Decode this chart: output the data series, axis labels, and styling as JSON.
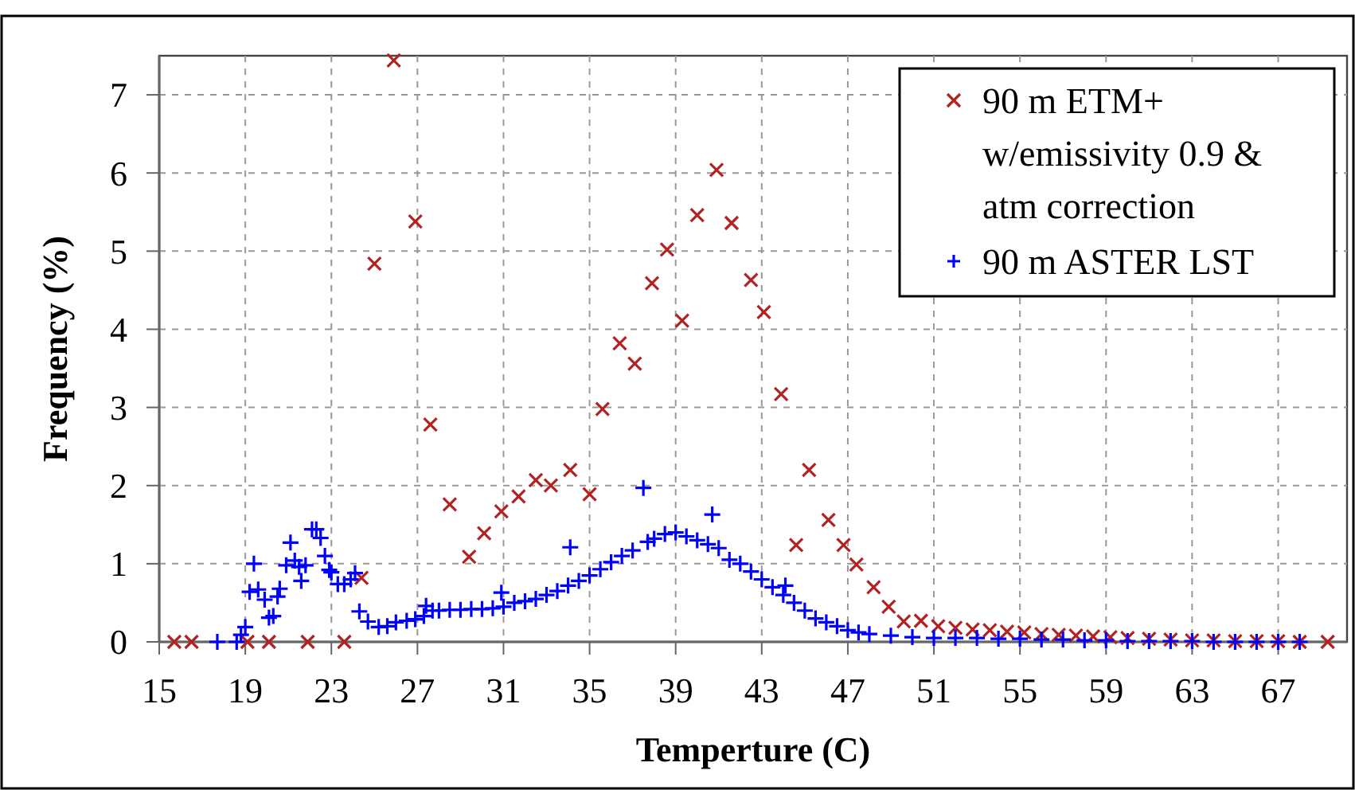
{
  "chart_data": {
    "type": "scatter",
    "xlabel": "Temperture (C)",
    "ylabel": "Frequency (%)",
    "xlim": [
      15,
      70.2
    ],
    "xticks": [
      15,
      19,
      23,
      27,
      31,
      35,
      39,
      43,
      47,
      51,
      55,
      59,
      63,
      67
    ],
    "ylim": [
      0,
      7.5
    ],
    "yticks": [
      0,
      1,
      2,
      3,
      4,
      5,
      6,
      7
    ],
    "grid": true,
    "legend": "top right",
    "series": [
      {
        "name": "90 m ETM+ w/emissivity 0.9 & atm correction",
        "color": "#b22222",
        "marker": "cross",
        "x": [
          15.7,
          16.5,
          19.1,
          20.1,
          21.9,
          23.6,
          24.4,
          25.0,
          25.9,
          26.9,
          27.6,
          28.5,
          29.4,
          30.1,
          30.9,
          31.7,
          32.5,
          33.2,
          34.1,
          35.0,
          35.6,
          36.4,
          37.1,
          37.9,
          38.6,
          39.3,
          40.0,
          40.9,
          41.6,
          42.5,
          43.1,
          43.9,
          44.6,
          45.2,
          46.1,
          46.8,
          47.4,
          48.2,
          48.9,
          49.6,
          50.4,
          51.2,
          52.0,
          52.8,
          53.6,
          54.4,
          55.2,
          56.0,
          56.8,
          57.6,
          58.4,
          59.2,
          60.0,
          61.0,
          62.0,
          63.0,
          64.0,
          65.0,
          66.0,
          67.0,
          68.0,
          69.3
        ],
        "values": [
          0,
          0,
          0,
          0,
          0,
          0,
          0.82,
          4.84,
          7.44,
          5.38,
          2.78,
          1.76,
          1.09,
          1.39,
          1.67,
          1.86,
          2.07,
          2.0,
          2.2,
          1.89,
          2.98,
          3.82,
          3.56,
          4.59,
          5.02,
          4.11,
          5.46,
          6.04,
          5.36,
          4.63,
          4.22,
          3.17,
          1.24,
          2.2,
          1.56,
          1.24,
          0.99,
          0.7,
          0.45,
          0.26,
          0.27,
          0.2,
          0.18,
          0.16,
          0.15,
          0.13,
          0.12,
          0.1,
          0.09,
          0.08,
          0.07,
          0.06,
          0.05,
          0.04,
          0.03,
          0.02,
          0.02,
          0.01,
          0.01,
          0.01,
          0,
          0
        ]
      },
      {
        "name": "90 m ASTER LST",
        "color": "#0000ff",
        "marker": "plus",
        "x": [
          17.7,
          18.6,
          18.8,
          19.0,
          19.2,
          19.4,
          19.6,
          19.9,
          20.1,
          20.3,
          20.5,
          20.6,
          20.9,
          21.1,
          21.3,
          21.5,
          21.6,
          21.8,
          22.1,
          22.3,
          22.5,
          22.7,
          22.9,
          23.0,
          23.3,
          23.6,
          23.9,
          24.1,
          24.3,
          24.7,
          25.2,
          25.6,
          26.0,
          26.5,
          26.9,
          27.3,
          27.4,
          27.7,
          28.0,
          28.5,
          29.0,
          29.5,
          30.0,
          30.5,
          30.9,
          31.0,
          31.5,
          32.0,
          32.5,
          33.0,
          33.5,
          34.0,
          34.1,
          34.5,
          35.0,
          35.5,
          36.0,
          36.5,
          37.0,
          37.5,
          37.7,
          38.0,
          38.5,
          39.0,
          39.5,
          40.0,
          40.5,
          40.7,
          41.0,
          41.5,
          42.0,
          42.5,
          43.0,
          43.5,
          44.0,
          44.1,
          44.5,
          45.0,
          45.5,
          46.0,
          46.5,
          47.0,
          47.5,
          48.0,
          49.0,
          50.0,
          51.0,
          52.0,
          53.0,
          54.0,
          55.0,
          56.0,
          57.0,
          58.0,
          59.0,
          60.0,
          61.0,
          62.0,
          63.0,
          64.0,
          65.0,
          66.0,
          67.0,
          68.0
        ],
        "values": [
          0,
          0,
          0.09,
          0.19,
          0.64,
          1.0,
          0.67,
          0.54,
          0.31,
          0.33,
          0.58,
          0.68,
          0.98,
          1.27,
          1.04,
          0.96,
          0.78,
          0.98,
          1.44,
          1.44,
          1.33,
          1.1,
          0.92,
          0.89,
          0.74,
          0.74,
          0.8,
          0.88,
          0.39,
          0.26,
          0.19,
          0.2,
          0.25,
          0.27,
          0.29,
          0.33,
          0.46,
          0.4,
          0.4,
          0.41,
          0.41,
          0.42,
          0.42,
          0.43,
          0.63,
          0.45,
          0.5,
          0.52,
          0.55,
          0.6,
          0.65,
          0.72,
          1.21,
          0.78,
          0.85,
          0.93,
          1.02,
          1.1,
          1.17,
          1.97,
          1.28,
          1.32,
          1.38,
          1.4,
          1.35,
          1.3,
          1.25,
          1.63,
          1.2,
          1.05,
          1.0,
          0.9,
          0.8,
          0.7,
          0.6,
          0.72,
          0.5,
          0.4,
          0.3,
          0.25,
          0.2,
          0.15,
          0.12,
          0.1,
          0.08,
          0.06,
          0.05,
          0.05,
          0.05,
          0.04,
          0.04,
          0.03,
          0.03,
          0.02,
          0.02,
          0.01,
          0.01,
          0.01,
          0.01,
          0,
          0,
          0,
          0,
          0
        ]
      }
    ]
  }
}
